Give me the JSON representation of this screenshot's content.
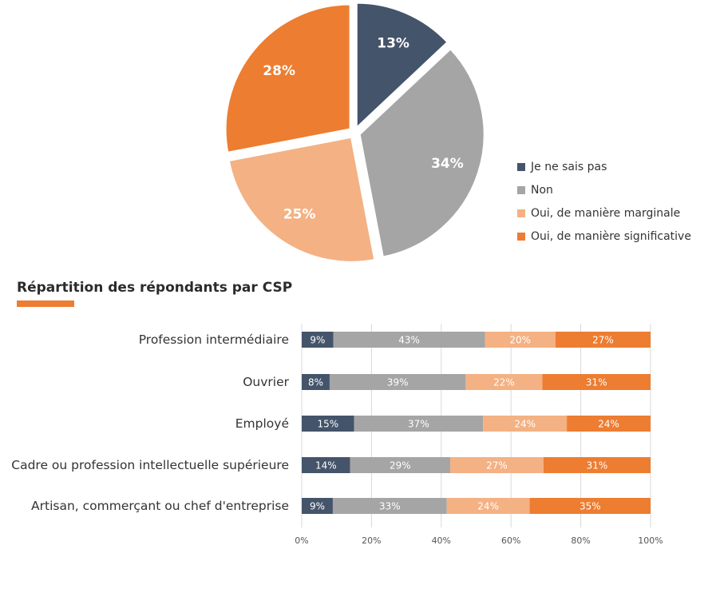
{
  "chart_data": [
    {
      "type": "pie",
      "title": "",
      "slices": [
        {
          "label": "Je ne sais pas",
          "value": 13,
          "display": "13%",
          "color": "#44546A"
        },
        {
          "label": "Non",
          "value": 34,
          "display": "34%",
          "color": "#A5A5A5"
        },
        {
          "label": "Oui, de manière marginale",
          "value": 25,
          "display": "25%",
          "color": "#F4B183"
        },
        {
          "label": "Oui, de manière significative",
          "value": 28,
          "display": "28%",
          "color": "#ED7D31"
        }
      ],
      "legend_position": "right"
    },
    {
      "type": "bar",
      "orientation": "horizontal",
      "stacked": "percent",
      "title": "Répartition des répondants par CSP",
      "categories": [
        "Profession intermédiaire",
        "Ouvrier",
        "Employé",
        "Cadre ou profession intellectuelle supérieure",
        "Artisan, commerçant ou chef d'entreprise"
      ],
      "series": [
        {
          "name": "Je ne sais pas",
          "color": "#44546A",
          "values": [
            9,
            8,
            15,
            14,
            9
          ]
        },
        {
          "name": "Non",
          "color": "#A5A5A5",
          "values": [
            43,
            39,
            37,
            29,
            33
          ]
        },
        {
          "name": "Oui, de manière marginale",
          "color": "#F4B183",
          "values": [
            20,
            22,
            24,
            27,
            24
          ]
        },
        {
          "name": "Oui, de manière significative",
          "color": "#ED7D31",
          "values": [
            27,
            31,
            24,
            31,
            35
          ]
        }
      ],
      "xlim": [
        0,
        100
      ],
      "x_ticks": [
        "0%",
        "20%",
        "40%",
        "60%",
        "80%",
        "100%"
      ],
      "grid": true,
      "title_accent_color": "#ED7D31"
    }
  ]
}
